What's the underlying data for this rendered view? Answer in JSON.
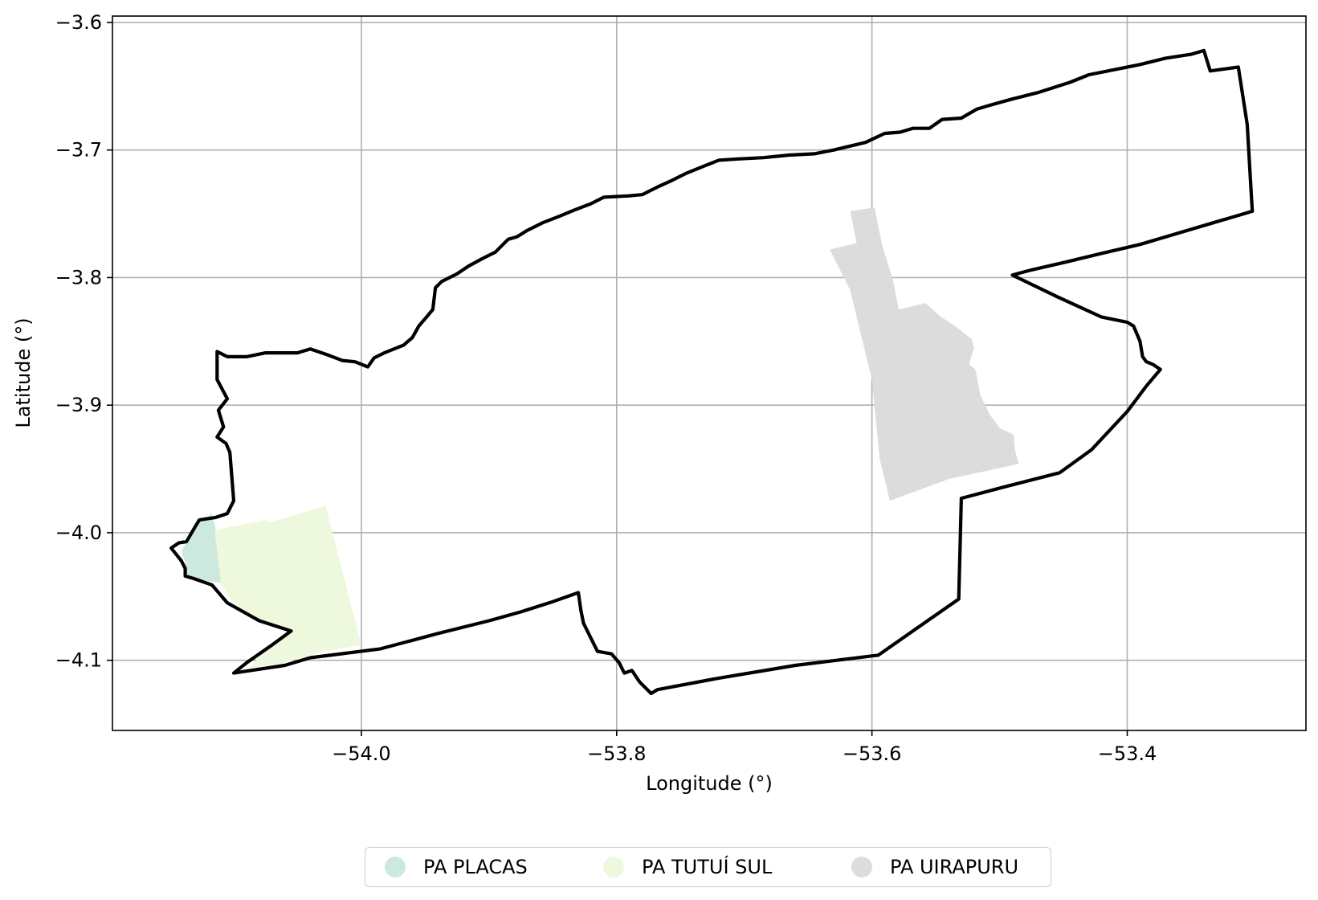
{
  "chart_data": {
    "type": "map",
    "xlabel": "Longitude (°)",
    "ylabel": "Latitude (°)",
    "xlim": [
      -54.195,
      -53.26
    ],
    "ylim": [
      -4.155,
      -3.595
    ],
    "grid": true,
    "x_ticks": [
      {
        "value": -54.0,
        "label": "−54.0"
      },
      {
        "value": -53.8,
        "label": "−53.8"
      },
      {
        "value": -53.6,
        "label": "−53.6"
      },
      {
        "value": -53.4,
        "label": "−53.4"
      }
    ],
    "y_ticks": [
      {
        "value": -3.6,
        "label": "−3.6"
      },
      {
        "value": -3.7,
        "label": "−3.7"
      },
      {
        "value": -3.8,
        "label": "−3.8"
      },
      {
        "value": -3.9,
        "label": "−3.9"
      },
      {
        "value": -4.0,
        "label": "−4.0"
      },
      {
        "value": -4.1,
        "label": "−4.1"
      }
    ],
    "boundary": {
      "color": "#000000",
      "coordinates": [
        [
          -54.114,
          -3.988
        ],
        [
          -54.105,
          -3.985
        ],
        [
          -54.1,
          -3.975
        ],
        [
          -54.103,
          -3.937
        ],
        [
          -54.106,
          -3.93
        ],
        [
          -54.113,
          -3.925
        ],
        [
          -54.108,
          -3.917
        ],
        [
          -54.112,
          -3.904
        ],
        [
          -54.105,
          -3.895
        ],
        [
          -54.113,
          -3.88
        ],
        [
          -54.113,
          -3.858
        ],
        [
          -54.105,
          -3.862
        ],
        [
          -54.09,
          -3.862
        ],
        [
          -54.075,
          -3.859
        ],
        [
          -54.05,
          -3.859
        ],
        [
          -54.04,
          -3.856
        ],
        [
          -54.028,
          -3.86
        ],
        [
          -54.015,
          -3.865
        ],
        [
          -54.005,
          -3.866
        ],
        [
          -53.995,
          -3.87
        ],
        [
          -53.99,
          -3.863
        ],
        [
          -53.982,
          -3.859
        ],
        [
          -53.967,
          -3.853
        ],
        [
          -53.96,
          -3.847
        ],
        [
          -53.955,
          -3.838
        ],
        [
          -53.949,
          -3.831
        ],
        [
          -53.944,
          -3.825
        ],
        [
          -53.942,
          -3.808
        ],
        [
          -53.937,
          -3.803
        ],
        [
          -53.925,
          -3.797
        ],
        [
          -53.916,
          -3.791
        ],
        [
          -53.905,
          -3.785
        ],
        [
          -53.895,
          -3.78
        ],
        [
          -53.885,
          -3.77
        ],
        [
          -53.878,
          -3.768
        ],
        [
          -53.87,
          -3.763
        ],
        [
          -53.858,
          -3.757
        ],
        [
          -53.845,
          -3.752
        ],
        [
          -53.833,
          -3.747
        ],
        [
          -53.82,
          -3.742
        ],
        [
          -53.81,
          -3.737
        ],
        [
          -53.791,
          -3.736
        ],
        [
          -53.78,
          -3.735
        ],
        [
          -53.768,
          -3.729
        ],
        [
          -53.757,
          -3.724
        ],
        [
          -53.745,
          -3.718
        ],
        [
          -53.73,
          -3.712
        ],
        [
          -53.72,
          -3.708
        ],
        [
          -53.705,
          -3.707
        ],
        [
          -53.685,
          -3.706
        ],
        [
          -53.665,
          -3.704
        ],
        [
          -53.645,
          -3.703
        ],
        [
          -53.63,
          -3.7
        ],
        [
          -53.605,
          -3.694
        ],
        [
          -53.59,
          -3.687
        ],
        [
          -53.578,
          -3.686
        ],
        [
          -53.568,
          -3.683
        ],
        [
          -53.555,
          -3.683
        ],
        [
          -53.545,
          -3.676
        ],
        [
          -53.53,
          -3.675
        ],
        [
          -53.518,
          -3.668
        ],
        [
          -53.508,
          -3.665
        ],
        [
          -53.49,
          -3.66
        ],
        [
          -53.47,
          -3.655
        ],
        [
          -53.445,
          -3.647
        ],
        [
          -53.43,
          -3.641
        ],
        [
          -53.41,
          -3.637
        ],
        [
          -53.39,
          -3.633
        ],
        [
          -53.37,
          -3.628
        ],
        [
          -53.35,
          -3.625
        ],
        [
          -53.34,
          -3.622
        ],
        [
          -53.335,
          -3.638
        ],
        [
          -53.313,
          -3.635
        ],
        [
          -53.306,
          -3.68
        ],
        [
          -53.304,
          -3.715
        ],
        [
          -53.302,
          -3.748
        ],
        [
          -53.336,
          -3.758
        ],
        [
          -53.363,
          -3.766
        ],
        [
          -53.39,
          -3.774
        ],
        [
          -53.42,
          -3.781
        ],
        [
          -53.449,
          -3.788
        ],
        [
          -53.475,
          -3.794
        ],
        [
          -53.49,
          -3.798
        ],
        [
          -53.455,
          -3.815
        ],
        [
          -53.42,
          -3.831
        ],
        [
          -53.4,
          -3.835
        ],
        [
          -53.395,
          -3.838
        ],
        [
          -53.39,
          -3.85
        ],
        [
          -53.388,
          -3.862
        ],
        [
          -53.385,
          -3.866
        ],
        [
          -53.38,
          -3.868
        ],
        [
          -53.374,
          -3.872
        ],
        [
          -53.385,
          -3.885
        ],
        [
          -53.4,
          -3.905
        ],
        [
          -53.428,
          -3.935
        ],
        [
          -53.453,
          -3.953
        ],
        [
          -53.496,
          -3.964
        ],
        [
          -53.53,
          -3.973
        ],
        [
          -53.532,
          -4.052
        ],
        [
          -53.555,
          -4.068
        ],
        [
          -53.595,
          -4.096
        ],
        [
          -53.66,
          -4.104
        ],
        [
          -53.72,
          -4.114
        ],
        [
          -53.768,
          -4.123
        ],
        [
          -53.773,
          -4.126
        ],
        [
          -53.782,
          -4.117
        ],
        [
          -53.788,
          -4.108
        ],
        [
          -53.794,
          -4.11
        ],
        [
          -53.798,
          -4.102
        ],
        [
          -53.804,
          -4.095
        ],
        [
          -53.815,
          -4.093
        ],
        [
          -53.82,
          -4.083
        ],
        [
          -53.826,
          -4.071
        ],
        [
          -53.828,
          -4.061
        ],
        [
          -53.83,
          -4.047
        ],
        [
          -53.85,
          -4.054
        ],
        [
          -53.875,
          -4.062
        ],
        [
          -53.9,
          -4.069
        ],
        [
          -53.94,
          -4.079
        ],
        [
          -53.985,
          -4.091
        ],
        [
          -54.04,
          -4.098
        ],
        [
          -54.06,
          -4.104
        ],
        [
          -54.1,
          -4.11
        ],
        [
          -54.09,
          -4.102
        ],
        [
          -54.07,
          -4.088
        ],
        [
          -54.055,
          -4.077
        ],
        [
          -54.08,
          -4.069
        ],
        [
          -54.105,
          -4.055
        ],
        [
          -54.117,
          -4.041
        ],
        [
          -54.131,
          -4.036
        ],
        [
          -54.138,
          -4.034
        ],
        [
          -54.138,
          -4.028
        ],
        [
          -54.141,
          -4.022
        ],
        [
          -54.149,
          -4.012
        ],
        [
          -54.143,
          -4.008
        ],
        [
          -54.137,
          -4.007
        ],
        [
          -54.13,
          -3.995
        ],
        [
          -54.127,
          -3.99
        ],
        [
          -54.114,
          -3.988
        ]
      ]
    },
    "regions": [
      {
        "name": "PA PLACAS",
        "color": "#cde9df",
        "coordinates": [
          [
            -54.126,
            -3.991
          ],
          [
            -54.117,
            -3.985
          ],
          [
            -54.104,
            -4.04
          ],
          [
            -54.12,
            -4.038
          ],
          [
            -54.137,
            -4.034
          ],
          [
            -54.138,
            -4.023
          ],
          [
            -54.141,
            -4.015
          ],
          [
            -54.136,
            -4.005
          ],
          [
            -54.128,
            -3.992
          ]
        ]
      },
      {
        "name": "PA TUTUÍ SUL",
        "color": "#eef8dc",
        "coordinates": [
          [
            -54.115,
            -3.998
          ],
          [
            -54.075,
            -3.99
          ],
          [
            -54.072,
            -3.992
          ],
          [
            -54.028,
            -3.979
          ],
          [
            -54.0,
            -4.088
          ],
          [
            -54.03,
            -4.093
          ],
          [
            -54.06,
            -4.102
          ],
          [
            -54.088,
            -4.106
          ],
          [
            -54.07,
            -4.087
          ],
          [
            -54.055,
            -4.077
          ],
          [
            -54.08,
            -4.069
          ],
          [
            -54.102,
            -4.053
          ],
          [
            -54.11,
            -4.04
          ]
        ]
      },
      {
        "name": "PA UIRAPURU",
        "color": "#dcdcdc",
        "coordinates": [
          [
            -53.617,
            -3.748
          ],
          [
            -53.598,
            -3.745
          ],
          [
            -53.592,
            -3.775
          ],
          [
            -53.584,
            -3.8
          ],
          [
            -53.579,
            -3.825
          ],
          [
            -53.558,
            -3.82
          ],
          [
            -53.547,
            -3.83
          ],
          [
            -53.535,
            -3.838
          ],
          [
            -53.522,
            -3.848
          ],
          [
            -53.52,
            -3.855
          ],
          [
            -53.524,
            -3.868
          ],
          [
            -53.519,
            -3.872
          ],
          [
            -53.515,
            -3.892
          ],
          [
            -53.508,
            -3.907
          ],
          [
            -53.5,
            -3.918
          ],
          [
            -53.489,
            -3.923
          ],
          [
            -53.488,
            -3.935
          ],
          [
            -53.485,
            -3.946
          ],
          [
            -53.54,
            -3.958
          ],
          [
            -53.586,
            -3.975
          ],
          [
            -53.594,
            -3.942
          ],
          [
            -53.6,
            -3.88
          ],
          [
            -53.617,
            -3.81
          ],
          [
            -53.633,
            -3.778
          ],
          [
            -53.612,
            -3.773
          ]
        ]
      }
    ],
    "legend": {
      "position": "bottom",
      "entries": [
        {
          "label": "PA PLACAS",
          "color": "#cde9df"
        },
        {
          "label": "PA TUTUÍ SUL",
          "color": "#eef8dc"
        },
        {
          "label": "PA UIRAPURU",
          "color": "#dcdcdc"
        }
      ]
    }
  }
}
